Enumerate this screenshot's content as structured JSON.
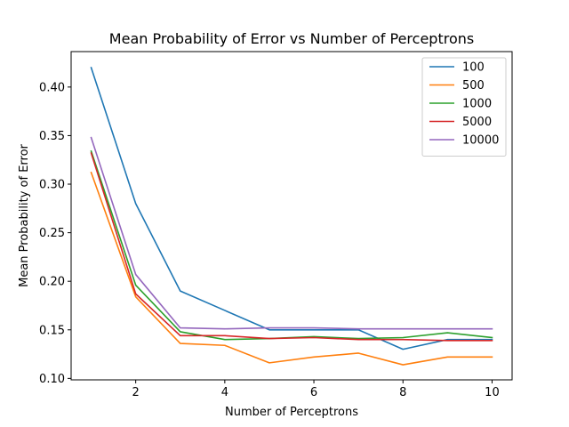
{
  "chart_data": {
    "type": "line",
    "title": "Mean Probability of Error vs Number of Perceptrons",
    "xlabel": "Number of Perceptrons",
    "ylabel": "Mean Probability of Error",
    "xlim": [
      0.55,
      10.45
    ],
    "ylim": [
      0.0985,
      0.4365
    ],
    "xticks": [
      2,
      4,
      6,
      8,
      10
    ],
    "xtick_labels": [
      "2",
      "4",
      "6",
      "8",
      "10"
    ],
    "yticks": [
      0.1,
      0.15,
      0.2,
      0.25,
      0.3,
      0.35,
      0.4
    ],
    "ytick_labels": [
      "0.10",
      "0.15",
      "0.20",
      "0.25",
      "0.30",
      "0.35",
      "0.40"
    ],
    "grid": false,
    "legend_position": "upper right",
    "x": [
      1,
      2,
      3,
      4,
      5,
      6,
      7,
      8,
      9,
      10
    ],
    "series": [
      {
        "name": "100",
        "color": "#1f77b4",
        "values": [
          0.42,
          0.28,
          0.19,
          0.17,
          0.15,
          0.15,
          0.15,
          0.13,
          0.14,
          0.14
        ]
      },
      {
        "name": "500",
        "color": "#ff7f0e",
        "values": [
          0.312,
          0.184,
          0.136,
          0.134,
          0.116,
          0.122,
          0.126,
          0.114,
          0.122,
          0.122
        ]
      },
      {
        "name": "1000",
        "color": "#2ca02c",
        "values": [
          0.334,
          0.196,
          0.148,
          0.14,
          0.141,
          0.143,
          0.141,
          0.142,
          0.147,
          0.142
        ]
      },
      {
        "name": "5000",
        "color": "#d62728",
        "values": [
          0.332,
          0.187,
          0.144,
          0.144,
          0.141,
          0.142,
          0.14,
          0.14,
          0.139,
          0.139
        ]
      },
      {
        "name": "10000",
        "color": "#9467bd",
        "values": [
          0.348,
          0.207,
          0.152,
          0.151,
          0.152,
          0.152,
          0.151,
          0.151,
          0.151,
          0.151
        ]
      }
    ]
  }
}
